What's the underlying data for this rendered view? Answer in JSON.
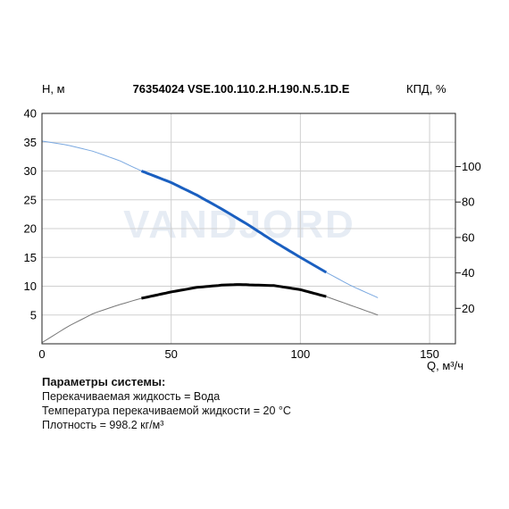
{
  "chart_data": {
    "type": "line",
    "title": "76354024 VSE.100.110.2.H.190.N.5.1D.E",
    "xlabel": "Q, м³/ч",
    "ylabel": "H, м",
    "y2label": "КПД, %",
    "xlim": [
      0,
      160
    ],
    "ylim": [
      0,
      40
    ],
    "x_ticks": [
      0,
      50,
      100,
      150
    ],
    "y_ticks": [
      5,
      10,
      15,
      20,
      25,
      30,
      35,
      40
    ],
    "y2_ticks": [
      20,
      40,
      60,
      80,
      100
    ],
    "y2_max_on_left_scale": 40,
    "y2_range": [
      0,
      130
    ],
    "grid": true,
    "watermark": "VANDJORD",
    "series": [
      {
        "role": "head",
        "color": "#1a5fc0",
        "thin_color": "#7aa8e0",
        "x": [
          0,
          10,
          20,
          30,
          38.5,
          50,
          60,
          70,
          80,
          90,
          100,
          110,
          120,
          130
        ],
        "y": [
          35.2,
          34.5,
          33.4,
          31.8,
          30.0,
          28.0,
          25.8,
          23.3,
          20.6,
          17.7,
          15.0,
          12.4,
          10.0,
          8.0
        ],
        "operating_range": [
          38.5,
          110
        ]
      },
      {
        "role": "efficiency",
        "color": "#000000",
        "thin_color": "#777777",
        "x": [
          0,
          10,
          20,
          30,
          38.5,
          50,
          60,
          70,
          76,
          90,
          100,
          110,
          120,
          130
        ],
        "y": [
          0.2,
          3.0,
          5.3,
          6.8,
          7.9,
          9.0,
          9.8,
          10.2,
          10.3,
          10.1,
          9.4,
          8.2,
          6.6,
          5.0
        ],
        "operating_range": [
          38.5,
          110
        ]
      }
    ]
  },
  "params": {
    "title": "Параметры системы:",
    "fluid": "Перекачиваемая жидкость = Вода",
    "temperature": "Температура перекачиваемой жидкости = 20 °C",
    "density": "Плотность = 998.2 кг/м³"
  }
}
